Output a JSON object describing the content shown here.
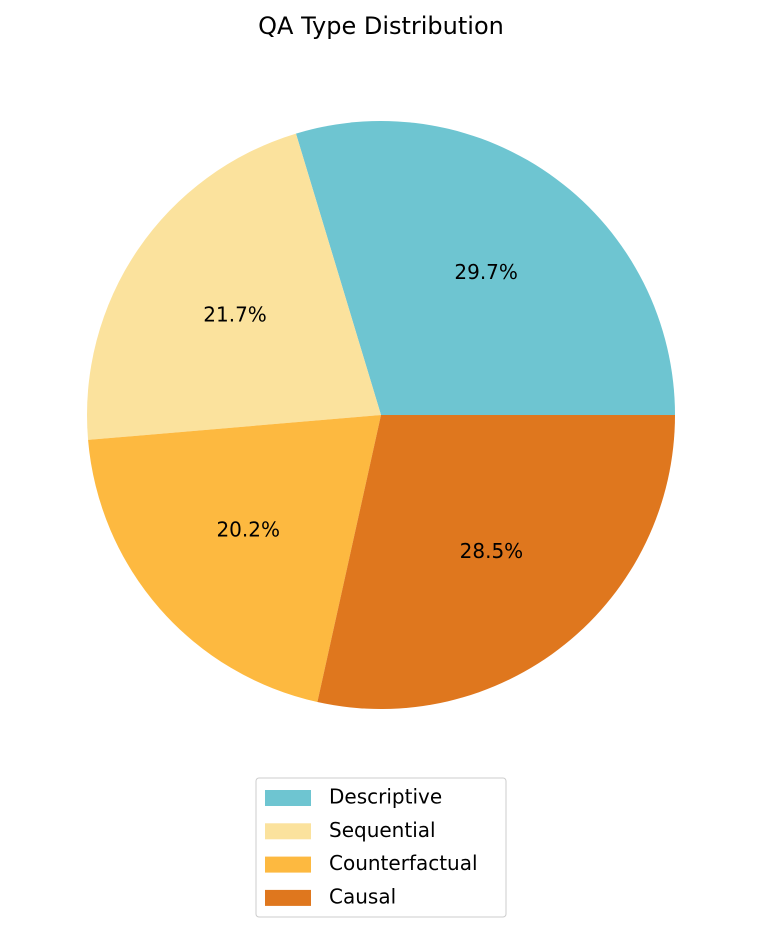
{
  "chart_data": {
    "type": "pie",
    "title": "QA Type Distribution",
    "categories": [
      "Descriptive",
      "Sequential",
      "Counterfactual",
      "Causal"
    ],
    "values": [
      29.7,
      21.7,
      20.2,
      28.5
    ],
    "value_labels": [
      "29.7%",
      "21.7%",
      "20.2%",
      "28.5%"
    ],
    "colors": [
      "#6ec5d1",
      "#fbe29d",
      "#fdb940",
      "#df771e"
    ],
    "legend": "bottom"
  }
}
